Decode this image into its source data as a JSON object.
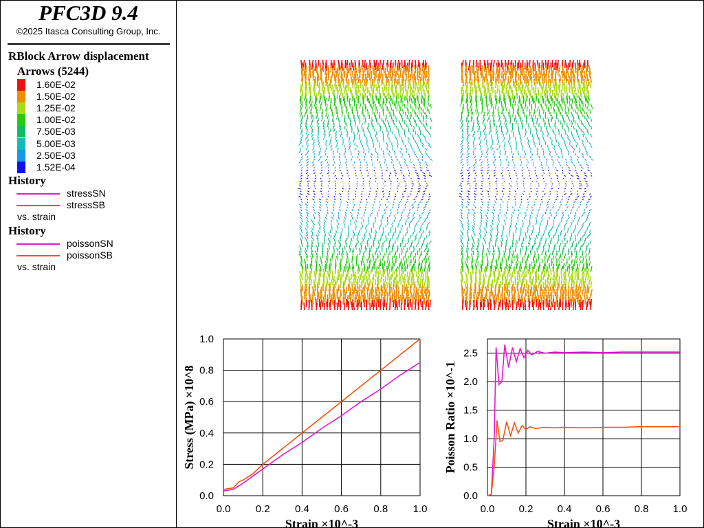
{
  "app": {
    "title": "PFC3D 9.4",
    "copyright": "©2025 Itasca Consulting Group, Inc."
  },
  "legend": {
    "plot_title": "RBlock Arrow displacement",
    "arrows_label": "Arrows (5244)",
    "color_scale": [
      {
        "value": "1.60E-02",
        "color": "#ee1111"
      },
      {
        "value": "1.50E-02",
        "color": "#ee8f00"
      },
      {
        "value": "1.25E-02",
        "color": "#aadd11"
      },
      {
        "value": "1.00E-02",
        "color": "#22cc11"
      },
      {
        "value": "7.50E-03",
        "color": "#11bb66"
      },
      {
        "value": "5.00E-03",
        "color": "#11bbbb"
      },
      {
        "value": "2.50E-03",
        "color": "#1199ee"
      },
      {
        "value": "1.52E-04",
        "color": "#1111ee"
      }
    ],
    "history1": {
      "heading": "History",
      "entries": [
        {
          "name": "stressSN",
          "color": "#e817d4"
        },
        {
          "name": "stressSB",
          "color": "#f4520e"
        }
      ],
      "vs": "vs. strain"
    },
    "history2": {
      "heading": "History",
      "entries": [
        {
          "name": "poissonSN",
          "color": "#e817d4"
        },
        {
          "name": "poissonSB",
          "color": "#f4520e"
        }
      ],
      "vs": "vs. strain"
    }
  },
  "chart_data": [
    {
      "type": "line",
      "xlabel": "Strain ×10^-3",
      "ylabel": "Stress (MPa) ×10^8",
      "xlim": [
        0,
        1
      ],
      "ylim": [
        0,
        1
      ],
      "xticks": [
        "0.0",
        "0.2",
        "0.4",
        "0.6",
        "0.8",
        "1.0"
      ],
      "yticks": [
        "0.0",
        "0.2",
        "0.4",
        "0.6",
        "0.8",
        "1.0"
      ],
      "grid": true,
      "series": [
        {
          "name": "stressSN",
          "color": "#e817d4",
          "x": [
            0,
            0.05,
            0.1,
            0.2,
            0.3,
            0.4,
            0.5,
            0.6,
            0.7,
            0.8,
            0.9,
            1.0
          ],
          "y": [
            0.03,
            0.04,
            0.08,
            0.17,
            0.26,
            0.34,
            0.43,
            0.51,
            0.6,
            0.68,
            0.77,
            0.85
          ]
        },
        {
          "name": "stressSB",
          "color": "#f4520e",
          "x": [
            0,
            0.05,
            0.08,
            0.1,
            0.15,
            0.2,
            0.3,
            0.4,
            0.5,
            0.6,
            0.7,
            0.8,
            0.9,
            1.0
          ],
          "y": [
            0.04,
            0.05,
            0.09,
            0.1,
            0.14,
            0.2,
            0.3,
            0.4,
            0.5,
            0.6,
            0.7,
            0.8,
            0.9,
            1.0
          ]
        }
      ]
    },
    {
      "type": "line",
      "xlabel": "Strain ×10^-3",
      "ylabel": "Poisson Ratio ×10^-1",
      "xlim": [
        0,
        1
      ],
      "ylim": [
        0,
        2.75
      ],
      "xticks": [
        "0.0",
        "0.2",
        "0.4",
        "0.6",
        "0.8",
        "1.0"
      ],
      "yticks": [
        "0.0",
        "0.5",
        "1.0",
        "1.5",
        "2.0",
        "2.5"
      ],
      "grid": true,
      "series": [
        {
          "name": "poissonSN",
          "color": "#e817d4",
          "x": [
            0,
            0.02,
            0.035,
            0.045,
            0.06,
            0.075,
            0.09,
            0.11,
            0.13,
            0.15,
            0.17,
            0.19,
            0.21,
            0.23,
            0.26,
            0.3,
            0.35,
            0.4,
            0.5,
            0.6,
            0.7,
            0.8,
            0.9,
            1.0
          ],
          "y": [
            0,
            0.02,
            1.0,
            2.6,
            1.95,
            2.0,
            2.65,
            2.25,
            2.6,
            2.35,
            2.58,
            2.42,
            2.55,
            2.47,
            2.53,
            2.5,
            2.52,
            2.51,
            2.52,
            2.51,
            2.52,
            2.52,
            2.52,
            2.52
          ]
        },
        {
          "name": "poissonSB",
          "color": "#f4520e",
          "x": [
            0,
            0.02,
            0.035,
            0.05,
            0.065,
            0.08,
            0.1,
            0.12,
            0.14,
            0.16,
            0.18,
            0.2,
            0.22,
            0.25,
            0.3,
            0.35,
            0.4,
            0.5,
            0.6,
            0.7,
            0.8,
            0.9,
            1.0
          ],
          "y": [
            0,
            0.02,
            0.5,
            1.32,
            0.95,
            0.97,
            1.3,
            1.05,
            1.28,
            1.1,
            1.23,
            1.16,
            1.21,
            1.18,
            1.2,
            1.19,
            1.2,
            1.19,
            1.2,
            1.2,
            1.21,
            1.21,
            1.21
          ]
        }
      ]
    }
  ]
}
